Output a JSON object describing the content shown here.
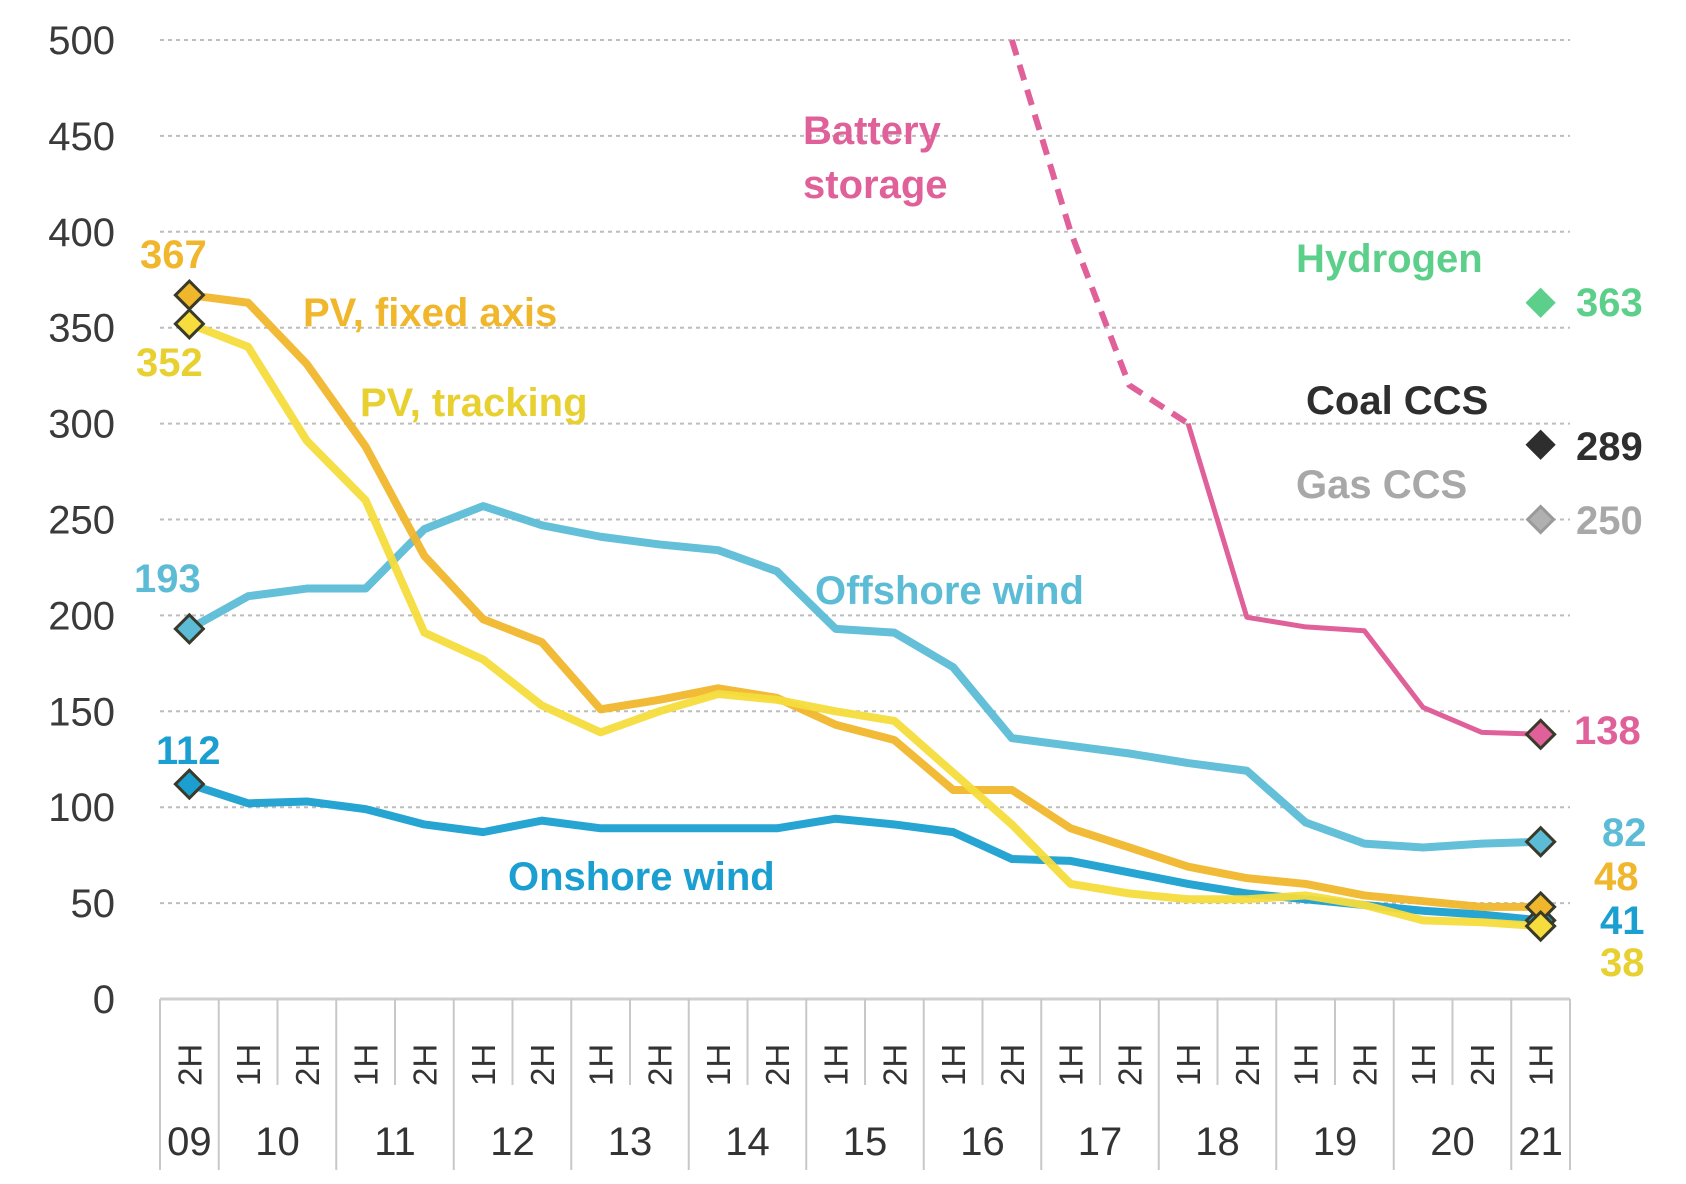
{
  "chart_data": {
    "type": "line",
    "title": "",
    "xlabel": "",
    "ylabel": "",
    "ylim": [
      0,
      500
    ],
    "yticks": [
      0,
      50,
      100,
      150,
      200,
      250,
      300,
      350,
      400,
      450,
      500
    ],
    "grid": true,
    "categories": [
      "2H",
      "1H",
      "2H",
      "1H",
      "2H",
      "1H",
      "2H",
      "1H",
      "2H",
      "1H",
      "2H",
      "1H",
      "2H",
      "1H",
      "2H",
      "1H",
      "2H",
      "1H",
      "2H",
      "1H",
      "2H",
      "1H",
      "2H",
      "1H"
    ],
    "full_categories": [
      "2H09",
      "1H10",
      "2H10",
      "1H11",
      "2H11",
      "1H12",
      "2H12",
      "1H13",
      "2H13",
      "1H14",
      "2H14",
      "1H15",
      "2H15",
      "1H16",
      "2H16",
      "1H17",
      "2H17",
      "1H18",
      "2H18",
      "1H19",
      "2H19",
      "1H20",
      "2H20",
      "1H21"
    ],
    "years": [
      {
        "label": "09",
        "start": 0,
        "span": 1
      },
      {
        "label": "10",
        "start": 1,
        "span": 2
      },
      {
        "label": "11",
        "start": 3,
        "span": 2
      },
      {
        "label": "12",
        "start": 5,
        "span": 2
      },
      {
        "label": "13",
        "start": 7,
        "span": 2
      },
      {
        "label": "14",
        "start": 9,
        "span": 2
      },
      {
        "label": "15",
        "start": 11,
        "span": 2
      },
      {
        "label": "16",
        "start": 13,
        "span": 2
      },
      {
        "label": "17",
        "start": 15,
        "span": 2
      },
      {
        "label": "18",
        "start": 17,
        "span": 2
      },
      {
        "label": "19",
        "start": 19,
        "span": 2
      },
      {
        "label": "20",
        "start": 21,
        "span": 2
      },
      {
        "label": "21",
        "start": 23,
        "span": 1
      }
    ],
    "series": [
      {
        "name": "Offshore wind",
        "color": "#5cbcd6",
        "values": [
          193,
          210,
          214,
          214,
          245,
          257,
          247,
          241,
          237,
          234,
          223,
          193,
          191,
          173,
          136,
          132,
          128,
          123,
          119,
          92,
          81,
          79,
          81,
          82
        ],
        "start_label": "193",
        "end_label": "82"
      },
      {
        "name": "Onshore wind",
        "color": "#1a9fd0",
        "values": [
          112,
          102,
          103,
          99,
          91,
          87,
          93,
          89,
          89,
          89,
          89,
          94,
          91,
          87,
          73,
          72,
          66,
          60,
          55,
          52,
          49,
          46,
          44,
          41
        ],
        "start_label": "112",
        "end_label": "41"
      },
      {
        "name": "PV, fixed axis",
        "color": "#f0b62c",
        "values": [
          367,
          363,
          331,
          288,
          231,
          198,
          186,
          151,
          156,
          162,
          157,
          143,
          135,
          109,
          109,
          89,
          79,
          69,
          63,
          60,
          54,
          51,
          48,
          48
        ],
        "start_label": "367",
        "end_label": "48"
      },
      {
        "name": "PV, tracking",
        "color": "#f6dc3c",
        "values": [
          352,
          340,
          291,
          260,
          191,
          177,
          153,
          139,
          150,
          159,
          156,
          150,
          145,
          118,
          91,
          60,
          55,
          52,
          52,
          54,
          49,
          41,
          40,
          38
        ],
        "start_label": "352",
        "end_label": "38"
      },
      {
        "name": "Battery storage",
        "color": "#e0609a",
        "values": [
          null,
          null,
          null,
          null,
          null,
          null,
          null,
          null,
          null,
          null,
          null,
          null,
          null,
          null,
          500,
          400,
          320,
          300,
          199,
          194,
          192,
          152,
          139,
          138
        ],
        "dashed_until_index": 17,
        "end_label": "138"
      }
    ],
    "points": [
      {
        "name": "Hydrogen",
        "value": 363,
        "color": "#5ccf8a",
        "label": "363",
        "category": "1H21"
      },
      {
        "name": "Coal CCS",
        "value": 289,
        "color": "#2e2e2e",
        "label": "289",
        "category": "1H21"
      },
      {
        "name": "Gas CCS",
        "value": 250,
        "color": "#b0b0b0",
        "label": "250",
        "category": "1H21"
      }
    ],
    "annotations": {
      "battery": [
        "Battery",
        "storage"
      ],
      "pv_fixed": "PV, fixed axis",
      "pv_tracking": "PV, tracking",
      "offshore": "Offshore wind",
      "onshore": "Onshore wind",
      "hydrogen": "Hydrogen",
      "coal": "Coal CCS",
      "gas": "Gas CCS"
    }
  }
}
